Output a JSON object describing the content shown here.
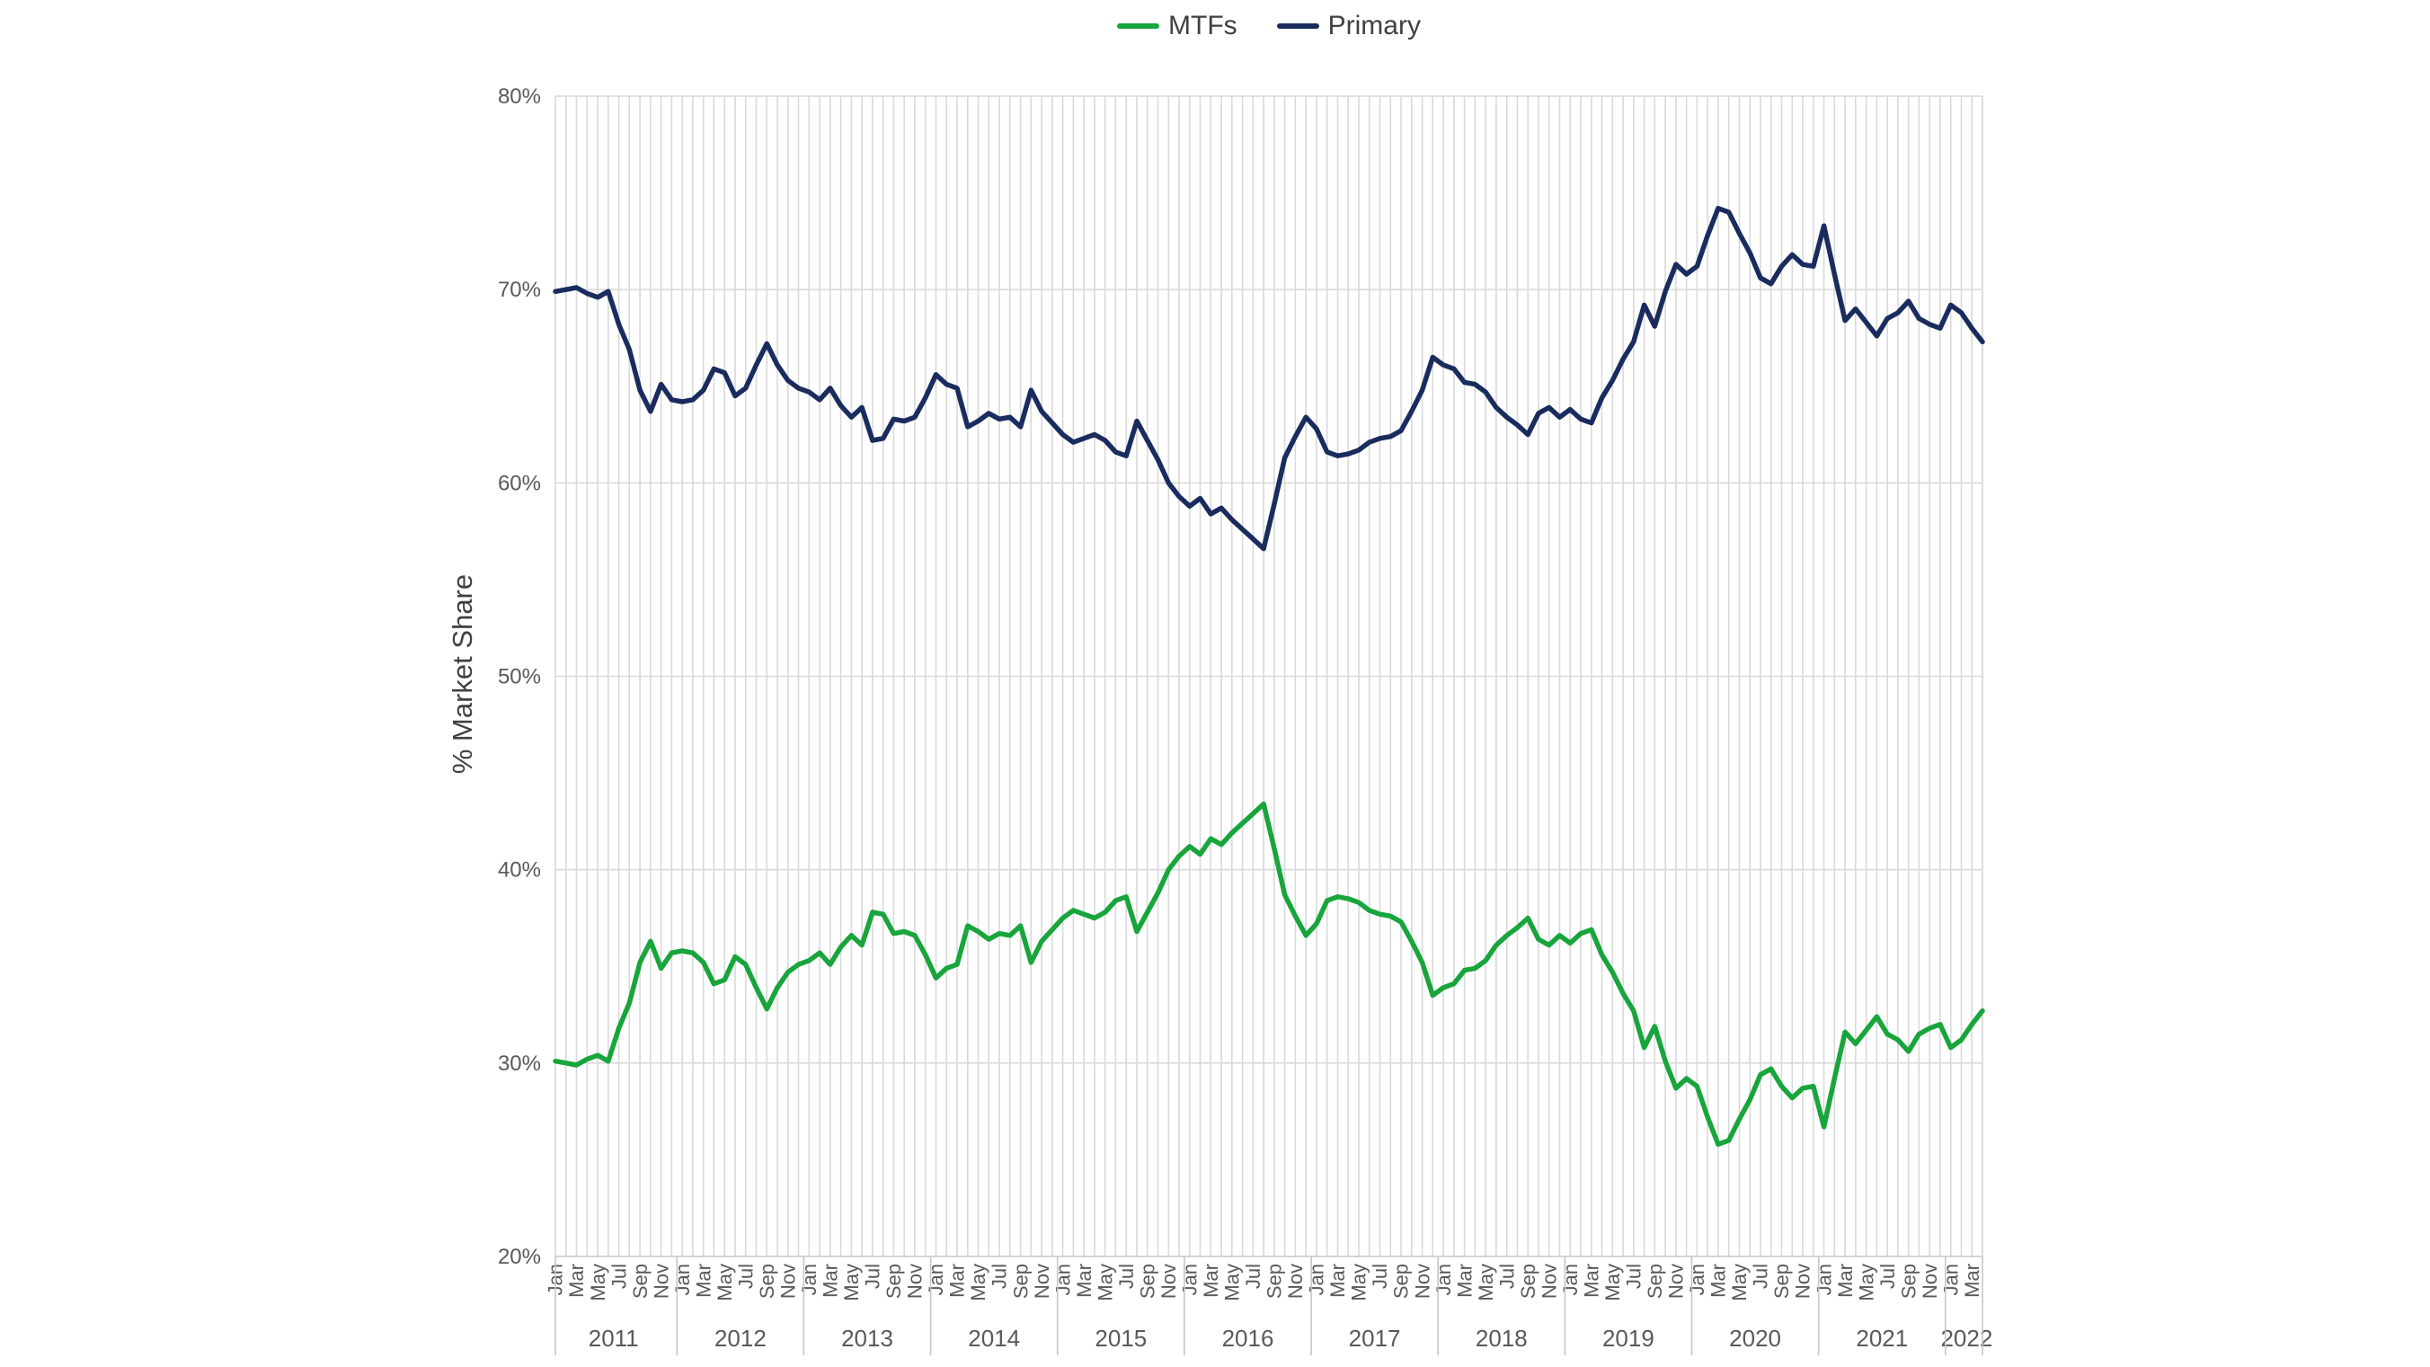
{
  "chart_data": {
    "type": "line",
    "ylabel": "% Market Share",
    "y_axis": {
      "min": 20,
      "max": 80,
      "step": 10,
      "tick_labels": [
        "20%",
        "30%",
        "40%",
        "50%",
        "60%",
        "70%",
        "80%"
      ]
    },
    "x_axis": {
      "interval": "monthly",
      "start": "Jan 2011",
      "end": "Apr 2022",
      "month_tick_labels": [
        "Jan",
        "Mar",
        "May",
        "Jul",
        "Sep",
        "Nov"
      ],
      "month_tick_offsets": [
        0,
        2,
        4,
        6,
        8,
        10
      ],
      "years": [
        "2011",
        "2012",
        "2013",
        "2014",
        "2015",
        "2016",
        "2017",
        "2018",
        "2019",
        "2020",
        "2021",
        "2022"
      ],
      "months_in_last_year": 4
    },
    "grid": {
      "horizontal": true,
      "vertical": "monthly",
      "color": "#D9D9D9",
      "axis_color": "#C6C6C6"
    },
    "legend": {
      "position": "top",
      "entries": [
        {
          "label": "MTFs",
          "color": "#18A53C"
        },
        {
          "label": "Primary",
          "color": "#1A2C5E"
        }
      ]
    },
    "series": [
      {
        "name": "MTFs",
        "color": "#18A53C",
        "values": [
          30.1,
          30.0,
          29.9,
          30.2,
          30.4,
          30.1,
          31.8,
          33.1,
          35.2,
          36.3,
          34.9,
          35.7,
          35.8,
          35.7,
          35.2,
          34.1,
          34.3,
          35.5,
          35.1,
          33.9,
          32.8,
          33.9,
          34.7,
          35.1,
          35.3,
          35.7,
          35.1,
          36.0,
          36.6,
          36.1,
          37.8,
          37.7,
          36.7,
          36.8,
          36.6,
          35.6,
          34.4,
          34.9,
          35.1,
          37.1,
          36.8,
          36.4,
          36.7,
          36.6,
          37.1,
          35.2,
          36.3,
          36.9,
          37.5,
          37.9,
          37.7,
          37.5,
          37.8,
          38.4,
          38.6,
          36.8,
          37.8,
          38.8,
          40.0,
          40.7,
          41.2,
          40.8,
          41.6,
          41.3,
          41.9,
          42.4,
          42.9,
          43.4,
          41.1,
          38.7,
          37.6,
          36.6,
          37.2,
          38.4,
          38.6,
          38.5,
          38.3,
          37.9,
          37.7,
          37.6,
          37.3,
          36.3,
          35.2,
          33.5,
          33.9,
          34.1,
          34.8,
          34.9,
          35.3,
          36.1,
          36.6,
          37.0,
          37.5,
          36.4,
          36.1,
          36.6,
          36.2,
          36.7,
          36.9,
          35.6,
          34.7,
          33.6,
          32.7,
          30.8,
          31.9,
          30.1,
          28.7,
          29.2,
          28.8,
          27.2,
          25.8,
          26.0,
          27.1,
          28.1,
          29.4,
          29.7,
          28.8,
          28.2,
          28.7,
          28.8,
          26.7,
          29.2,
          31.6,
          31.0,
          31.7,
          32.4,
          31.5,
          31.2,
          30.6,
          31.5,
          31.8,
          32.0,
          30.8,
          31.2,
          32.0,
          32.7
        ]
      },
      {
        "name": "Primary",
        "color": "#1A2C5E",
        "values": [
          69.9,
          70.0,
          70.1,
          69.8,
          69.6,
          69.9,
          68.2,
          66.9,
          64.8,
          63.7,
          65.1,
          64.3,
          64.2,
          64.3,
          64.8,
          65.9,
          65.7,
          64.5,
          64.9,
          66.1,
          67.2,
          66.1,
          65.3,
          64.9,
          64.7,
          64.3,
          64.9,
          64.0,
          63.4,
          63.9,
          62.2,
          62.3,
          63.3,
          63.2,
          63.4,
          64.4,
          65.6,
          65.1,
          64.9,
          62.9,
          63.2,
          63.6,
          63.3,
          63.4,
          62.9,
          64.8,
          63.7,
          63.1,
          62.5,
          62.1,
          62.3,
          62.5,
          62.2,
          61.6,
          61.4,
          63.2,
          62.2,
          61.2,
          60.0,
          59.3,
          58.8,
          59.2,
          58.4,
          58.7,
          58.1,
          57.6,
          57.1,
          56.6,
          58.9,
          61.3,
          62.4,
          63.4,
          62.8,
          61.6,
          61.4,
          61.5,
          61.7,
          62.1,
          62.3,
          62.4,
          62.7,
          63.7,
          64.8,
          66.5,
          66.1,
          65.9,
          65.2,
          65.1,
          64.7,
          63.9,
          63.4,
          63.0,
          62.5,
          63.6,
          63.9,
          63.4,
          63.8,
          63.3,
          63.1,
          64.4,
          65.3,
          66.4,
          67.3,
          69.2,
          68.1,
          69.9,
          71.3,
          70.8,
          71.2,
          72.8,
          74.2,
          74.0,
          72.9,
          71.9,
          70.6,
          70.3,
          71.2,
          71.8,
          71.3,
          71.2,
          73.3,
          70.8,
          68.4,
          69.0,
          68.3,
          67.6,
          68.5,
          68.8,
          69.4,
          68.5,
          68.2,
          68.0,
          69.2,
          68.8,
          68.0,
          67.3
        ]
      }
    ]
  }
}
